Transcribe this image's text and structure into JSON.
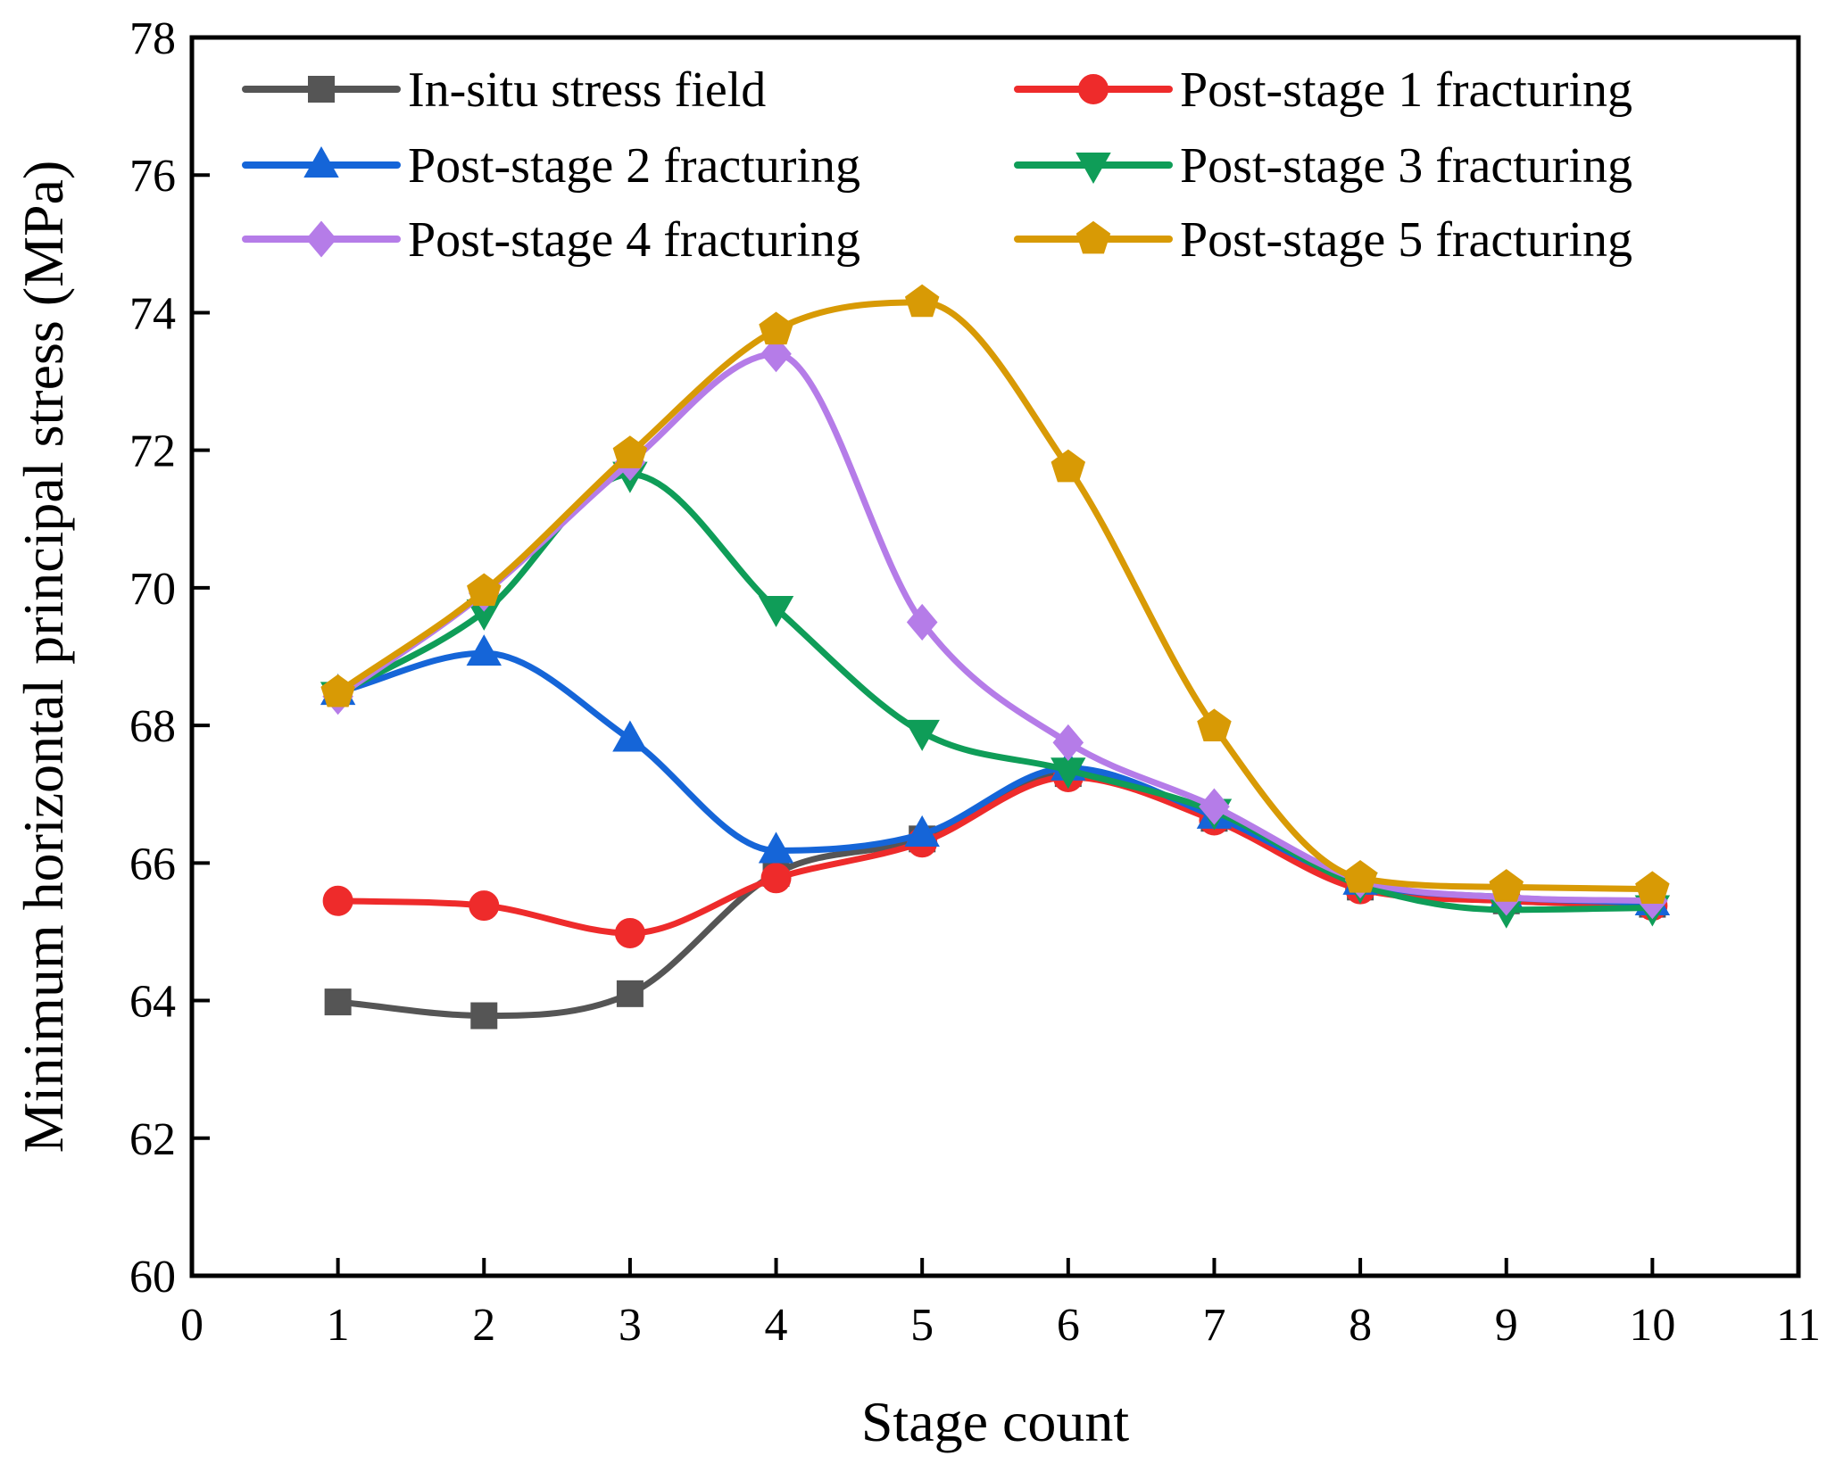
{
  "chart_data": {
    "type": "line",
    "title": "",
    "xlabel": "Stage count",
    "ylabel": "Minimum horizontal principal stress (MPa)",
    "xlim": [
      0,
      11
    ],
    "ylim": [
      60,
      78
    ],
    "xticks": [
      0,
      1,
      2,
      3,
      4,
      5,
      6,
      7,
      8,
      9,
      10,
      11
    ],
    "yticks": [
      60,
      62,
      64,
      66,
      68,
      70,
      72,
      74,
      76,
      78
    ],
    "grid": false,
    "legend_position": "top",
    "x": [
      1,
      2,
      3,
      4,
      5,
      6,
      7,
      8,
      9,
      10
    ],
    "series": [
      {
        "name": "In-situ stress field",
        "color": "#555555",
        "marker": "square",
        "values": [
          63.98,
          63.78,
          64.1,
          65.85,
          66.35,
          67.3,
          66.65,
          65.65,
          65.45,
          65.4
        ]
      },
      {
        "name": "Post-stage 1 fracturing",
        "color": "#ee2b2b",
        "marker": "circle",
        "values": [
          65.45,
          65.38,
          64.98,
          65.78,
          66.3,
          67.25,
          66.62,
          65.62,
          65.45,
          65.38
        ]
      },
      {
        "name": "Post-stage 2 fracturing",
        "color": "#1565d8",
        "marker": "triangle-up",
        "values": [
          68.48,
          69.05,
          67.8,
          66.18,
          66.42,
          67.38,
          66.68,
          65.72,
          65.5,
          65.42
        ]
      },
      {
        "name": "Post-stage 3 fracturing",
        "color": "#0f9d58",
        "marker": "triangle-down",
        "values": [
          68.45,
          69.65,
          71.65,
          69.7,
          67.9,
          67.35,
          66.75,
          65.68,
          65.32,
          65.35
        ]
      },
      {
        "name": "Post-stage 4 fracturing",
        "color": "#b57ce8",
        "marker": "diamond",
        "values": [
          68.42,
          69.92,
          71.82,
          73.4,
          69.5,
          67.75,
          66.82,
          65.75,
          65.5,
          65.45
        ]
      },
      {
        "name": "Post-stage 5 fracturing",
        "color": "#d89a05",
        "marker": "pentagon",
        "values": [
          68.48,
          69.95,
          71.95,
          73.75,
          74.15,
          71.75,
          67.98,
          65.78,
          65.65,
          65.62
        ]
      }
    ]
  }
}
